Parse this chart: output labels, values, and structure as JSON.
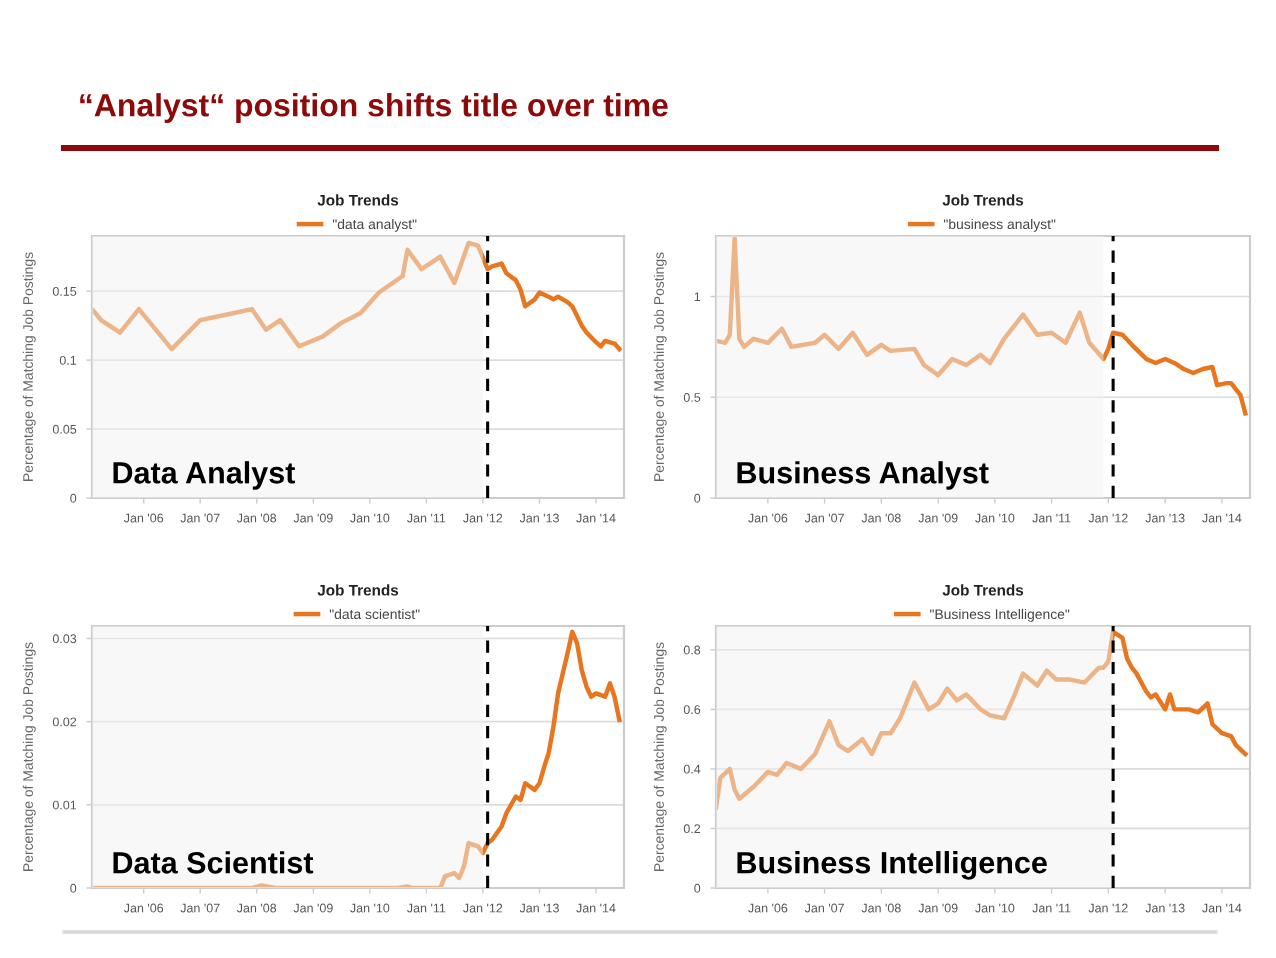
{
  "chart_data": [
    {
      "type": "other",
      "title": "“Analyst“ position shifts title over time"
    },
    {
      "type": "line",
      "title": "Job Trends",
      "ylabel": "Percentage of Matching Job Postings",
      "legend": "top",
      "grid": "y",
      "xlim": [
        "2005-02",
        "2014-07"
      ],
      "xticks": [
        {
          "value": "2006-01",
          "label": "Jan '06"
        },
        {
          "value": "2007-01",
          "label": "Jan '07"
        },
        {
          "value": "2008-01",
          "label": "Jan '08"
        },
        {
          "value": "2009-01",
          "label": "Jan '09"
        },
        {
          "value": "2010-01",
          "label": "Jan '10"
        },
        {
          "value": "2011-01",
          "label": "Jan '11"
        },
        {
          "value": "2012-01",
          "label": "Jan '12"
        },
        {
          "value": "2013-01",
          "label": "Jan '13"
        },
        {
          "value": "2014-01",
          "label": "Jan '14"
        }
      ],
      "ylim": [
        0,
        0.19
      ],
      "yticks": [
        0,
        0.05,
        0.1,
        0.15
      ],
      "ref_lines": [
        {
          "axis": "x",
          "value": "2012-02",
          "color": "#000000",
          "line_style": "dashed"
        }
      ],
      "bands": [
        {
          "axis": "x",
          "from": "2005-02",
          "to": "2012-01",
          "label": "Data Analyst",
          "color": "#f2f2f2"
        }
      ],
      "series": [
        {
          "name": "\"data analyst\"",
          "color": "#e8761f",
          "x": [
            "2005-02",
            "2005-04",
            "2005-08",
            "2005-12",
            "2006-07",
            "2007-01",
            "2007-08",
            "2007-12",
            "2008-03",
            "2008-06",
            "2008-10",
            "2009-03",
            "2009-07",
            "2009-11",
            "2010-03",
            "2010-08",
            "2010-09",
            "2010-12",
            "2011-04",
            "2011-07",
            "2011-10",
            "2011-12",
            "2012-02",
            "2012-03",
            "2012-05",
            "2012-06",
            "2012-08",
            "2012-09",
            "2012-10",
            "2012-12",
            "2013-01",
            "2013-03",
            "2013-04",
            "2013-05",
            "2013-07",
            "2013-08",
            "2013-10",
            "2013-11",
            "2014-01",
            "2014-02",
            "2014-03",
            "2014-05",
            "2014-06"
          ],
          "values": [
            0.137,
            0.129,
            0.12,
            0.137,
            0.108,
            0.129,
            0.134,
            0.137,
            0.122,
            0.129,
            0.11,
            0.117,
            0.127,
            0.134,
            0.149,
            0.161,
            0.18,
            0.166,
            0.175,
            0.156,
            0.185,
            0.183,
            0.166,
            0.168,
            0.17,
            0.163,
            0.158,
            0.151,
            0.139,
            0.144,
            0.149,
            0.146,
            0.144,
            0.146,
            0.142,
            0.139,
            0.125,
            0.12,
            0.113,
            0.11,
            0.114,
            0.112,
            0.108
          ]
        }
      ]
    },
    {
      "type": "line",
      "title": "Job Trends",
      "ylabel": "Percentage of Matching Job Postings",
      "legend": "top",
      "grid": "y",
      "xlim": [
        "2005-02",
        "2014-07"
      ],
      "xticks": [
        {
          "value": "2006-01",
          "label": "Jan '06"
        },
        {
          "value": "2007-01",
          "label": "Jan '07"
        },
        {
          "value": "2008-01",
          "label": "Jan '08"
        },
        {
          "value": "2009-01",
          "label": "Jan '09"
        },
        {
          "value": "2010-01",
          "label": "Jan '10"
        },
        {
          "value": "2011-01",
          "label": "Jan '11"
        },
        {
          "value": "2012-01",
          "label": "Jan '12"
        },
        {
          "value": "2013-01",
          "label": "Jan '13"
        },
        {
          "value": "2014-01",
          "label": "Jan '14"
        }
      ],
      "ylim": [
        0,
        1.3
      ],
      "yticks": [
        0,
        0.5,
        1
      ],
      "ref_lines": [
        {
          "axis": "x",
          "value": "2012-02",
          "color": "#000000",
          "line_style": "dashed"
        }
      ],
      "bands": [
        {
          "axis": "x",
          "from": "2005-02",
          "to": "2011-12",
          "label": "Business Analyst",
          "color": "#f2f2f2"
        }
      ],
      "series": [
        {
          "name": "\"business analyst\"",
          "color": "#e8761f",
          "x": [
            "2005-02",
            "2005-04",
            "2005-05",
            "2005-06",
            "2005-07",
            "2005-08",
            "2005-10",
            "2006-01",
            "2006-04",
            "2006-06",
            "2006-11",
            "2007-01",
            "2007-04",
            "2007-07",
            "2007-10",
            "2008-01",
            "2008-03",
            "2008-08",
            "2008-10",
            "2009-01",
            "2009-04",
            "2009-07",
            "2009-10",
            "2009-12",
            "2010-03",
            "2010-07",
            "2010-10",
            "2011-01",
            "2011-04",
            "2011-07",
            "2011-09",
            "2011-12",
            "2012-01",
            "2012-02",
            "2012-04",
            "2012-06",
            "2012-09",
            "2012-11",
            "2013-01",
            "2013-03",
            "2013-05",
            "2013-07",
            "2013-09",
            "2013-11",
            "2013-12",
            "2014-02",
            "2014-03",
            "2014-05",
            "2014-06"
          ],
          "values": [
            0.78,
            0.77,
            0.81,
            1.29,
            0.79,
            0.75,
            0.79,
            0.77,
            0.84,
            0.75,
            0.77,
            0.81,
            0.74,
            0.82,
            0.71,
            0.76,
            0.73,
            0.74,
            0.66,
            0.61,
            0.69,
            0.66,
            0.71,
            0.67,
            0.79,
            0.91,
            0.81,
            0.82,
            0.77,
            0.92,
            0.77,
            0.69,
            0.74,
            0.82,
            0.81,
            0.76,
            0.69,
            0.67,
            0.69,
            0.67,
            0.64,
            0.62,
            0.64,
            0.65,
            0.56,
            0.57,
            0.57,
            0.51,
            0.42
          ]
        }
      ]
    },
    {
      "type": "line",
      "title": "Job Trends",
      "ylabel": "Percentage of Matching Job Postings",
      "legend": "top",
      "grid": "y",
      "xlim": [
        "2005-02",
        "2014-07"
      ],
      "xticks": [
        {
          "value": "2006-01",
          "label": "Jan '06"
        },
        {
          "value": "2007-01",
          "label": "Jan '07"
        },
        {
          "value": "2008-01",
          "label": "Jan '08"
        },
        {
          "value": "2009-01",
          "label": "Jan '09"
        },
        {
          "value": "2010-01",
          "label": "Jan '10"
        },
        {
          "value": "2011-01",
          "label": "Jan '11"
        },
        {
          "value": "2012-01",
          "label": "Jan '12"
        },
        {
          "value": "2013-01",
          "label": "Jan '13"
        },
        {
          "value": "2014-01",
          "label": "Jan '14"
        }
      ],
      "ylim": [
        0,
        0.0315
      ],
      "yticks": [
        0,
        0.01,
        0.02,
        0.03
      ],
      "ref_lines": [
        {
          "axis": "x",
          "value": "2012-02",
          "color": "#000000",
          "line_style": "dashed"
        }
      ],
      "bands": [
        {
          "axis": "x",
          "from": "2005-02",
          "to": "2012-01",
          "label": "Data Scientist",
          "color": "#f2f2f2"
        }
      ],
      "series": [
        {
          "name": "\"data scientist\"",
          "color": "#e8761f",
          "x": [
            "2005-02",
            "2007-12",
            "2008-02",
            "2008-05",
            "2010-07",
            "2010-09",
            "2010-10",
            "2011-04",
            "2011-05",
            "2011-07",
            "2011-08",
            "2011-09",
            "2011-10",
            "2011-12",
            "2012-01",
            "2012-02",
            "2012-03",
            "2012-05",
            "2012-06",
            "2012-08",
            "2012-09",
            "2012-10",
            "2012-12",
            "2013-01",
            "2013-02",
            "2013-03",
            "2013-04",
            "2013-05",
            "2013-07",
            "2013-08",
            "2013-09",
            "2013-10",
            "2013-11",
            "2013-12",
            "2014-01",
            "2014-03",
            "2014-04",
            "2014-05",
            "2014-06"
          ],
          "values": [
            0,
            0,
            0.0003,
            0,
            0,
            0.0002,
            0,
            0,
            0.0014,
            0.0018,
            0.0012,
            0.0026,
            0.0054,
            0.005,
            0.0042,
            0.0054,
            0.0058,
            0.0074,
            0.009,
            0.011,
            0.0106,
            0.0126,
            0.0118,
            0.0126,
            0.0146,
            0.0162,
            0.0194,
            0.0234,
            0.0282,
            0.0308,
            0.0294,
            0.0262,
            0.0242,
            0.023,
            0.0234,
            0.023,
            0.0246,
            0.023,
            0.0202
          ]
        }
      ]
    },
    {
      "type": "line",
      "title": "Job Trends",
      "ylabel": "Percentage of Matching Job Postings",
      "legend": "top",
      "grid": "y",
      "xlim": [
        "2005-02",
        "2014-07"
      ],
      "xticks": [
        {
          "value": "2006-01",
          "label": "Jan '06"
        },
        {
          "value": "2007-01",
          "label": "Jan '07"
        },
        {
          "value": "2008-01",
          "label": "Jan '08"
        },
        {
          "value": "2009-01",
          "label": "Jan '09"
        },
        {
          "value": "2010-01",
          "label": "Jan '10"
        },
        {
          "value": "2011-01",
          "label": "Jan '11"
        },
        {
          "value": "2012-01",
          "label": "Jan '12"
        },
        {
          "value": "2013-01",
          "label": "Jan '13"
        },
        {
          "value": "2014-01",
          "label": "Jan '14"
        }
      ],
      "ylim": [
        0,
        0.88
      ],
      "yticks": [
        0,
        0.2,
        0.4,
        0.6,
        0.8
      ],
      "ref_lines": [
        {
          "axis": "x",
          "value": "2012-02",
          "color": "#000000",
          "line_style": "dashed"
        }
      ],
      "bands": [
        {
          "axis": "x",
          "from": "2005-02",
          "to": "2012-02",
          "label": "Business Intelligence",
          "color": "#f2f2f2"
        }
      ],
      "series": [
        {
          "name": "\"Business Intelligence\"",
          "color": "#e8761f",
          "x": [
            "2005-02",
            "2005-03",
            "2005-05",
            "2005-06",
            "2005-07",
            "2005-10",
            "2006-01",
            "2006-03",
            "2006-05",
            "2006-08",
            "2006-11",
            "2007-02",
            "2007-04",
            "2007-06",
            "2007-09",
            "2007-11",
            "2008-01",
            "2008-03",
            "2008-05",
            "2008-08",
            "2008-11",
            "2009-01",
            "2009-03",
            "2009-05",
            "2009-07",
            "2009-10",
            "2009-12",
            "2010-03",
            "2010-05",
            "2010-07",
            "2010-10",
            "2010-12",
            "2011-02",
            "2011-05",
            "2011-08",
            "2011-11",
            "2011-12",
            "2012-01",
            "2012-02",
            "2012-04",
            "2012-05",
            "2012-06",
            "2012-07",
            "2012-09",
            "2012-10",
            "2012-11",
            "2013-01",
            "2013-02",
            "2013-03",
            "2013-06",
            "2013-08",
            "2013-10",
            "2013-11",
            "2014-01",
            "2014-03",
            "2014-04",
            "2014-06"
          ],
          "values": [
            0.27,
            0.37,
            0.4,
            0.33,
            0.3,
            0.34,
            0.39,
            0.38,
            0.42,
            0.4,
            0.45,
            0.56,
            0.48,
            0.46,
            0.5,
            0.45,
            0.52,
            0.52,
            0.57,
            0.69,
            0.6,
            0.62,
            0.67,
            0.63,
            0.65,
            0.6,
            0.58,
            0.57,
            0.64,
            0.72,
            0.68,
            0.73,
            0.7,
            0.7,
            0.69,
            0.74,
            0.74,
            0.76,
            0.86,
            0.84,
            0.77,
            0.74,
            0.72,
            0.66,
            0.64,
            0.65,
            0.6,
            0.65,
            0.6,
            0.6,
            0.59,
            0.62,
            0.55,
            0.52,
            0.51,
            0.48,
            0.45
          ]
        }
      ]
    }
  ]
}
